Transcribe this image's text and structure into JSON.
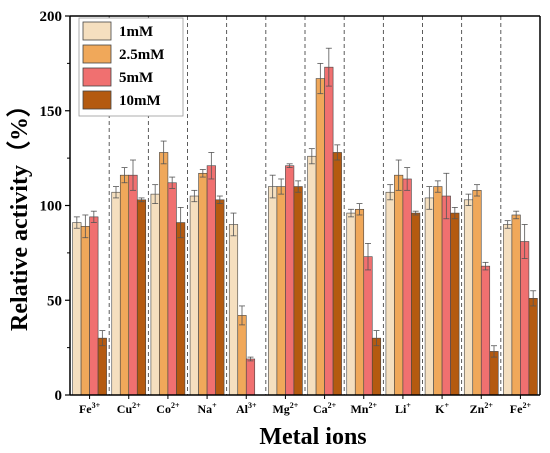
{
  "chart_data": {
    "type": "bar",
    "xlabel": "Metal ions",
    "ylabel": "Relative activity（%）",
    "ylim": [
      0,
      200
    ],
    "yticks": [
      0,
      50,
      100,
      150,
      200
    ],
    "categories": [
      {
        "base": "Fe",
        "sup": "3+"
      },
      {
        "base": "Cu",
        "sup": "2+"
      },
      {
        "base": "Co",
        "sup": "2+"
      },
      {
        "base": "Na",
        "sup": "+"
      },
      {
        "base": "Al",
        "sup": "3+"
      },
      {
        "base": "Mg",
        "sup": "2+"
      },
      {
        "base": "Ca",
        "sup": "2+"
      },
      {
        "base": "Mn",
        "sup": "2+"
      },
      {
        "base": "Li",
        "sup": "+"
      },
      {
        "base": "K",
        "sup": "+"
      },
      {
        "base": "Zn",
        "sup": "2+"
      },
      {
        "base": "Fe",
        "sup": "2+"
      }
    ],
    "series": [
      {
        "name": "1mM",
        "color": "#f5dfbf",
        "values": [
          91,
          107,
          106,
          105,
          90,
          110,
          126,
          96,
          107,
          104,
          103,
          90
        ],
        "errors": [
          3,
          3,
          5,
          3,
          6,
          6,
          4,
          2,
          4,
          6,
          3,
          2
        ]
      },
      {
        "name": "2.5mM",
        "color": "#f0a85a",
        "values": [
          89,
          116,
          128,
          117,
          42,
          110,
          167,
          98,
          116,
          110,
          108,
          95
        ],
        "errors": [
          6,
          4,
          6,
          2,
          5,
          4,
          8,
          3,
          8,
          3,
          3,
          2
        ]
      },
      {
        "name": "5mM",
        "color": "#f07070",
        "values": [
          94,
          116,
          112,
          121,
          19,
          121,
          173,
          73,
          114,
          105,
          68,
          81
        ],
        "errors": [
          3,
          8,
          3,
          7,
          1,
          1,
          10,
          7,
          6,
          12,
          2,
          9
        ]
      },
      {
        "name": "10mM",
        "color": "#b45a10",
        "values": [
          30,
          103,
          91,
          103,
          0,
          110,
          128,
          30,
          96,
          96,
          23,
          51
        ],
        "errors": [
          4,
          1,
          8,
          2,
          0,
          3,
          4,
          4,
          1,
          3,
          3,
          4
        ]
      }
    ],
    "legend_position": "top-left",
    "grid": false
  }
}
